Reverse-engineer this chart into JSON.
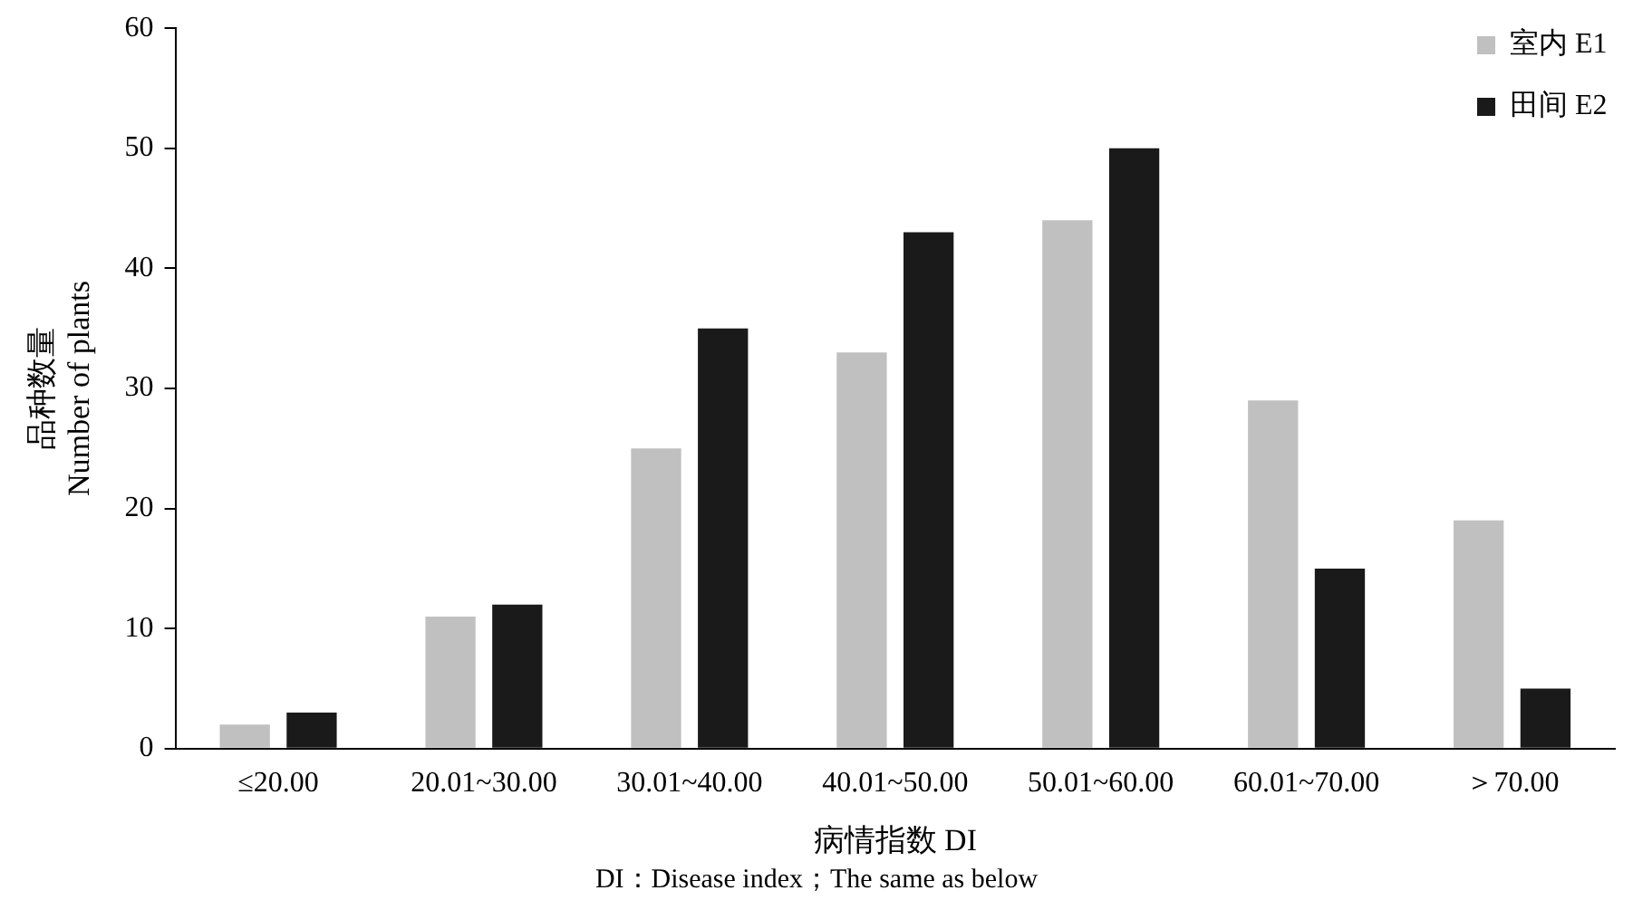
{
  "chart_data": {
    "type": "bar",
    "xlabel": "病情指数 DI",
    "ylabel": "品种数量\nNumber of plants",
    "annotations": [
      "DI：Disease index；The same as below"
    ],
    "categories": [
      "≤20.00",
      "20.01~30.00",
      "30.01~40.00",
      "40.01~50.00",
      "50.01~60.00",
      "60.01~70.00",
      "＞70.00"
    ],
    "series": [
      {
        "name": "室内 E1",
        "color": "#c0c0c0",
        "values": [
          2,
          11,
          25,
          33,
          44,
          29,
          19
        ]
      },
      {
        "name": "田间 E2",
        "color": "#1a1a1a",
        "values": [
          3,
          12,
          35,
          43,
          50,
          15,
          5
        ]
      }
    ],
    "ylim": [
      0,
      60
    ],
    "yticks": [
      0,
      10,
      20,
      30,
      40,
      50,
      60
    ],
    "grid": false,
    "legend": "top right"
  }
}
